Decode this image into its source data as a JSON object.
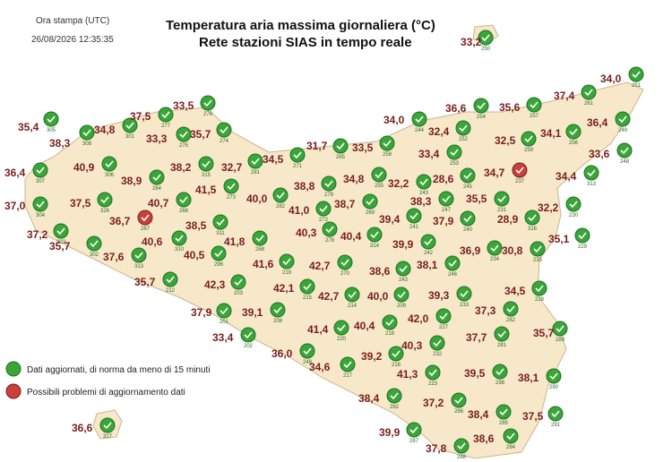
{
  "header": {
    "print_label": "Ora stampa (UTC)",
    "timestamp": "26/08/2026 12:35:35",
    "title": "Temperatura aria massima giornaliera (°C)",
    "subtitle": "Rete stazioni SIAS in tempo reale"
  },
  "legend": {
    "ok": "Dati aggiornati, di norma da meno di 15 minuti",
    "warning": "Possibili problemi di aggiornamento dati"
  },
  "stations": [
    {
      "temp": "35,4",
      "id": "305"
    },
    {
      "temp": "38,3",
      "id": "308"
    },
    {
      "temp": "34,8",
      "id": "301"
    },
    {
      "temp": "37,5",
      "id": "277"
    },
    {
      "temp": "33,5",
      "id": "276"
    },
    {
      "temp": "33,3",
      "id": "275"
    },
    {
      "temp": "35,7",
      "id": "274"
    },
    {
      "temp": "40,9",
      "id": "306"
    },
    {
      "temp": "36,4",
      "id": "307"
    },
    {
      "temp": "38,9",
      "id": "264"
    },
    {
      "temp": "38,2",
      "id": "315"
    },
    {
      "temp": "32,7",
      "id": "281"
    },
    {
      "temp": "34,5",
      "id": "271"
    },
    {
      "temp": "31,7",
      "id": "265"
    },
    {
      "temp": "33,5",
      "id": "258"
    },
    {
      "temp": "34,0",
      "id": "244"
    },
    {
      "temp": "36,6",
      "id": "254"
    },
    {
      "temp": "35,6",
      "id": "257"
    },
    {
      "temp": "37,4",
      "id": "261"
    },
    {
      "temp": "34,0",
      "id": "251"
    },
    {
      "temp": "36,4",
      "id": "249"
    },
    {
      "temp": "34,1",
      "id": "256"
    },
    {
      "temp": "32,5",
      "id": "259"
    },
    {
      "temp": "32,4",
      "id": "252"
    },
    {
      "temp": "33,6",
      "id": "248"
    },
    {
      "temp": "33,4",
      "id": "253"
    },
    {
      "temp": "34,7",
      "id": "237"
    },
    {
      "temp": "34,4",
      "id": "313"
    },
    {
      "temp": "28,6",
      "id": "245"
    },
    {
      "temp": "32,2",
      "id": "243"
    },
    {
      "temp": "34,8",
      "id": "255"
    },
    {
      "temp": "38,8",
      "id": "279"
    },
    {
      "temp": "40,0",
      "id": "282"
    },
    {
      "temp": "41,5",
      "id": "273"
    },
    {
      "temp": "40,7",
      "id": "266"
    },
    {
      "temp": "37,5",
      "id": "326"
    },
    {
      "temp": "37,0",
      "id": "304"
    },
    {
      "temp": "41,0",
      "id": "272"
    },
    {
      "temp": "38,7",
      "id": "269"
    },
    {
      "temp": "38,3",
      "id": "247"
    },
    {
      "temp": "35,5",
      "id": "231"
    },
    {
      "temp": "32,2",
      "id": "230"
    },
    {
      "temp": "37,2",
      "id": "303"
    },
    {
      "temp": "36,7",
      "id": "267"
    },
    {
      "temp": "38,5",
      "id": "311"
    },
    {
      "temp": "40,3",
      "id": "278"
    },
    {
      "temp": "40,4",
      "id": "314"
    },
    {
      "temp": "39,4",
      "id": "241"
    },
    {
      "temp": "37,9",
      "id": "240"
    },
    {
      "temp": "28,9",
      "id": "316"
    },
    {
      "temp": "35,7",
      "id": "302"
    },
    {
      "temp": "37,6",
      "id": "313"
    },
    {
      "temp": "40,6",
      "id": "310"
    },
    {
      "temp": "40,5",
      "id": "296"
    },
    {
      "temp": "41,8",
      "id": "268"
    },
    {
      "temp": "35,1",
      "id": "229"
    },
    {
      "temp": "30,8",
      "id": "235"
    },
    {
      "temp": "36,9",
      "id": "234"
    },
    {
      "temp": "39,9",
      "id": "242"
    },
    {
      "temp": "38,1",
      "id": "246"
    },
    {
      "temp": "38,6",
      "id": "243"
    },
    {
      "temp": "42,7",
      "id": "270"
    },
    {
      "temp": "41,6",
      "id": "219"
    },
    {
      "temp": "35,7",
      "id": "212"
    },
    {
      "temp": "42,3",
      "id": "203"
    },
    {
      "temp": "42,1",
      "id": "215"
    },
    {
      "temp": "42,7",
      "id": "214"
    },
    {
      "temp": "40,0",
      "id": "209"
    },
    {
      "temp": "39,3",
      "id": "233"
    },
    {
      "temp": "34,5",
      "id": "228"
    },
    {
      "temp": "37,3",
      "id": "282"
    },
    {
      "temp": "37,9",
      "id": "201"
    },
    {
      "temp": "39,1",
      "id": "208"
    },
    {
      "temp": "42,0",
      "id": "227"
    },
    {
      "temp": "40,4",
      "id": "218"
    },
    {
      "temp": "41,4",
      "id": "220"
    },
    {
      "temp": "37,7",
      "id": "281"
    },
    {
      "temp": "35,7",
      "id": "289"
    },
    {
      "temp": "40,3",
      "id": "232"
    },
    {
      "temp": "33,4",
      "id": "202"
    },
    {
      "temp": "36,0",
      "id": "248"
    },
    {
      "temp": "34,6",
      "id": "217"
    },
    {
      "temp": "39,2",
      "id": "216"
    },
    {
      "temp": "41,3",
      "id": "223"
    },
    {
      "temp": "39,5",
      "id": "298"
    },
    {
      "temp": "38,1",
      "id": "290"
    },
    {
      "temp": "38,4",
      "id": "282"
    },
    {
      "temp": "37,2",
      "id": "286"
    },
    {
      "temp": "38,4",
      "id": "285"
    },
    {
      "temp": "37,5",
      "id": "291"
    },
    {
      "temp": "36,6",
      "id": "317"
    },
    {
      "temp": "39,9",
      "id": "287"
    },
    {
      "temp": "37,8",
      "id": "288"
    },
    {
      "temp": "38,6",
      "id": "284"
    },
    {
      "temp": "33,2",
      "id": "250"
    }
  ]
}
